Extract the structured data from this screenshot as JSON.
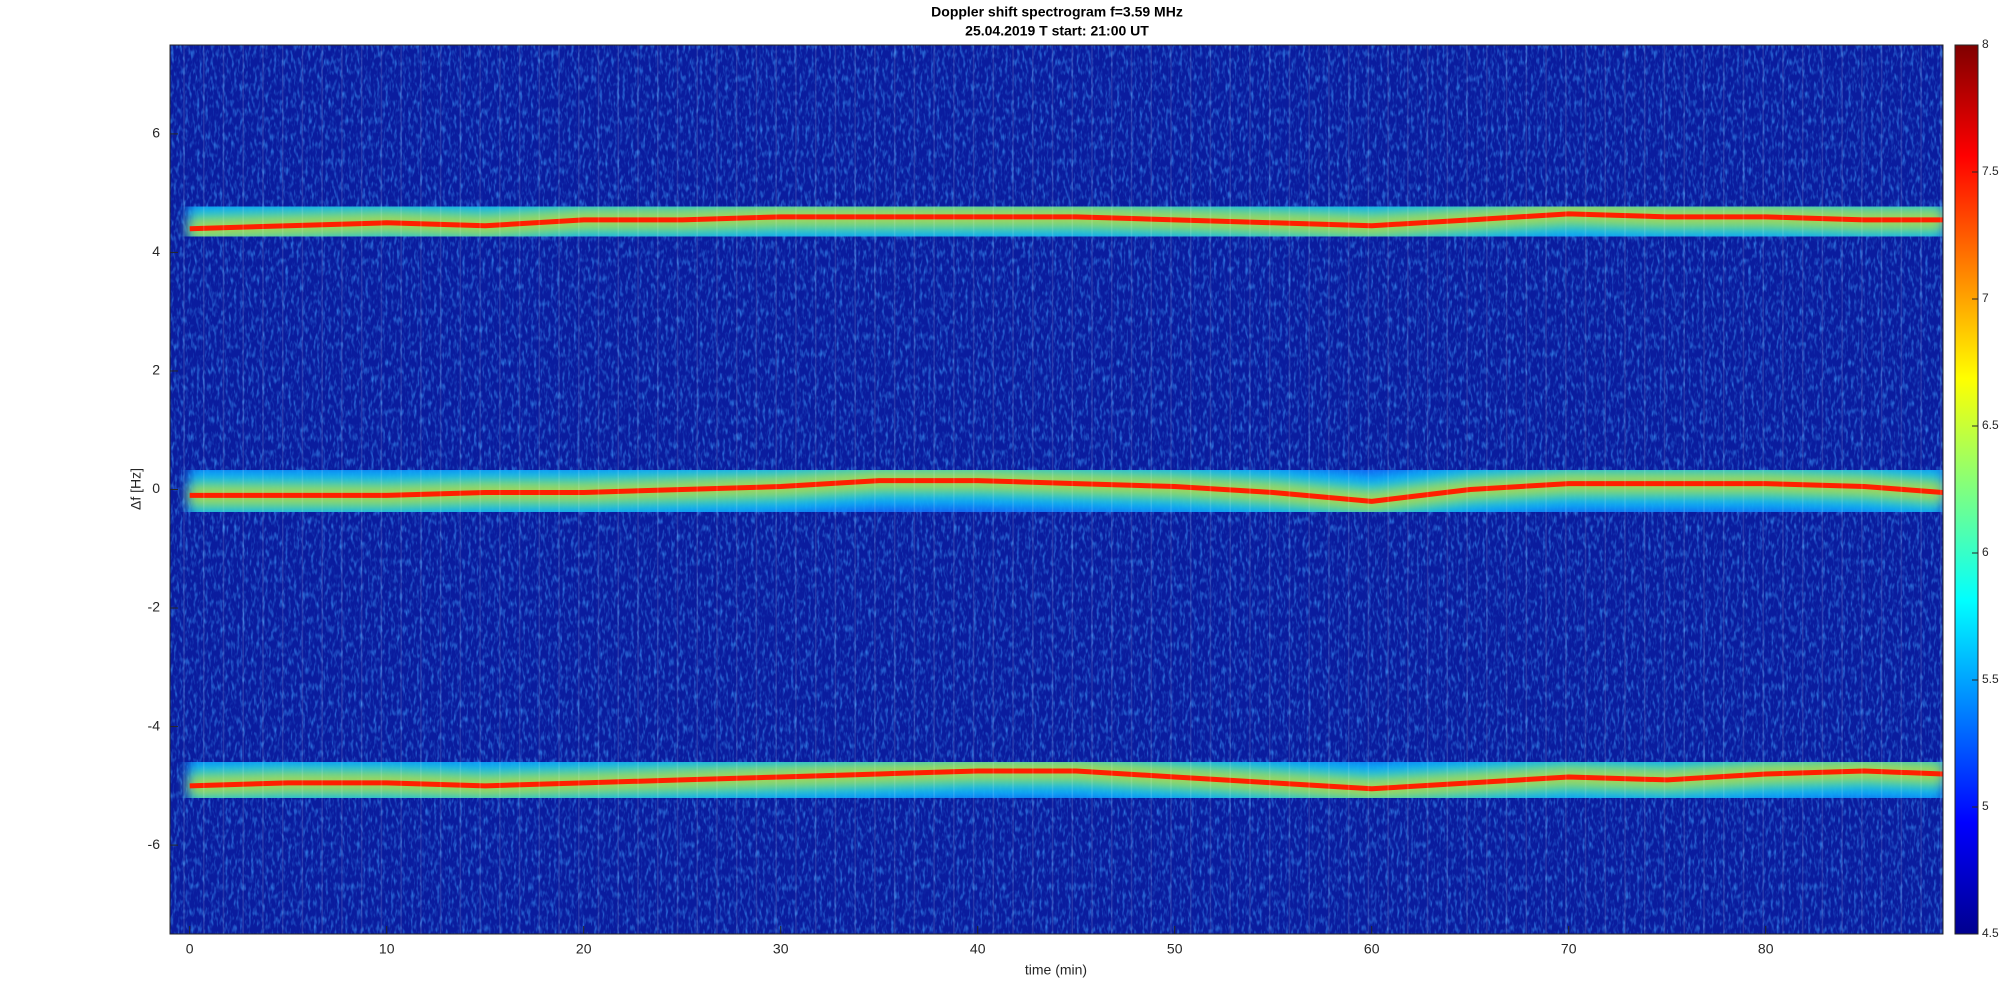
{
  "chart_data": {
    "type": "spectrogram",
    "title": "Doppler shift spectrogram f=3.59 MHz",
    "subtitle": "25.04.2019   T start: 21:00 UT",
    "xlabel": "time (min)",
    "ylabel": "Δf [Hz]",
    "xlim": [
      -1,
      89
    ],
    "xticks": [
      0,
      10,
      20,
      30,
      40,
      50,
      60,
      70,
      80
    ],
    "ylim": [
      -7.5,
      7.5
    ],
    "yticks": [
      -6,
      -4,
      -2,
      0,
      2,
      4,
      6
    ],
    "grid": false,
    "colormap": "jet",
    "clim": [
      4.5,
      8
    ],
    "cticks": [
      4.5,
      5,
      5.5,
      6,
      6.5,
      7,
      7.5,
      8
    ],
    "x": [
      0,
      5,
      10,
      15,
      20,
      25,
      30,
      35,
      40,
      45,
      50,
      55,
      60,
      65,
      70,
      75,
      80,
      85,
      89
    ],
    "series": [
      {
        "color": "#ff2000",
        "values": [
          4.4,
          4.45,
          4.5,
          4.45,
          4.55,
          4.55,
          4.6,
          4.6,
          4.6,
          4.6,
          4.55,
          4.5,
          4.45,
          4.55,
          4.65,
          4.6,
          4.6,
          4.55,
          4.55
        ]
      },
      {
        "color": "#ff2000",
        "values": [
          -0.1,
          -0.1,
          -0.1,
          -0.05,
          -0.05,
          0,
          0.05,
          0.15,
          0.15,
          0.1,
          0.05,
          -0.05,
          -0.2,
          0,
          0.1,
          0.1,
          0.1,
          0.05,
          -0.05
        ]
      },
      {
        "color": "#ff2000",
        "values": [
          -5.0,
          -4.95,
          -4.95,
          -5.0,
          -4.95,
          -4.9,
          -4.85,
          -4.8,
          -4.75,
          -4.75,
          -4.85,
          -4.95,
          -5.05,
          -4.95,
          -4.85,
          -4.9,
          -4.8,
          -4.75,
          -4.8
        ]
      }
    ]
  }
}
